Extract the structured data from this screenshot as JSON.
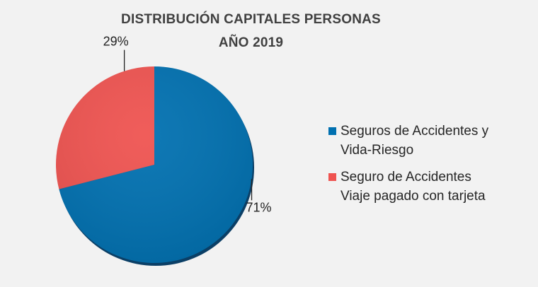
{
  "chart_data": {
    "type": "pie",
    "title": "DISTRIBUCIÓN CAPITALES PERSONAS",
    "subtitle": "AÑO 2019",
    "categories": [
      "Seguros de Accidentes y\nVida-Riesgo",
      "Seguro de Accidentes\nViaje pagado con tarjeta"
    ],
    "values": [
      71,
      29
    ],
    "data_labels": [
      "71%",
      "29%"
    ],
    "colors": [
      "#0070b0",
      "#ef5350"
    ],
    "legend_placement": "right"
  }
}
